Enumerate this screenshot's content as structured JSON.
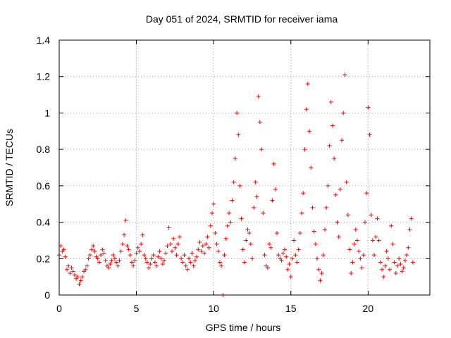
{
  "chart_data": {
    "type": "scatter",
    "title": "Day 051 of 2024, SRMTID for receiver iama",
    "xlabel": "GPS time / hours",
    "ylabel": "SRMTID / TECUs",
    "xlim": [
      0,
      24
    ],
    "ylim": [
      0,
      1.4
    ],
    "x_ticks": [
      0,
      5,
      10,
      15,
      20
    ],
    "x_tick_labels": [
      "0",
      "5",
      "10",
      "15",
      "20"
    ],
    "y_ticks": [
      0,
      0.2,
      0.4,
      0.6,
      0.8,
      1.0,
      1.2,
      1.4
    ],
    "y_tick_labels": [
      "0",
      "0.2",
      "0.4",
      "0.6",
      "0.8",
      "1",
      "1.2",
      "1.4"
    ],
    "grid": true,
    "marker": "+",
    "color": "#ff0000",
    "series": [
      {
        "name": "SRMTID",
        "points": [
          [
            0.0,
            0.22
          ],
          [
            0.1,
            0.27
          ],
          [
            0.2,
            0.24
          ],
          [
            0.3,
            0.25
          ],
          [
            0.4,
            0.21
          ],
          [
            0.5,
            0.14
          ],
          [
            0.6,
            0.16
          ],
          [
            0.7,
            0.12
          ],
          [
            0.8,
            0.15
          ],
          [
            0.9,
            0.13
          ],
          [
            1.0,
            0.11
          ],
          [
            1.1,
            0.09
          ],
          [
            1.2,
            0.1
          ],
          [
            1.3,
            0.06
          ],
          [
            1.4,
            0.08
          ],
          [
            1.5,
            0.1
          ],
          [
            1.6,
            0.13
          ],
          [
            1.7,
            0.14
          ],
          [
            1.8,
            0.16
          ],
          [
            1.9,
            0.2
          ],
          [
            2.0,
            0.22
          ],
          [
            2.1,
            0.25
          ],
          [
            2.2,
            0.27
          ],
          [
            2.3,
            0.24
          ],
          [
            2.4,
            0.21
          ],
          [
            2.5,
            0.2
          ],
          [
            2.6,
            0.18
          ],
          [
            2.7,
            0.22
          ],
          [
            2.8,
            0.25
          ],
          [
            2.9,
            0.23
          ],
          [
            3.0,
            0.19
          ],
          [
            3.1,
            0.16
          ],
          [
            3.2,
            0.15
          ],
          [
            3.3,
            0.17
          ],
          [
            3.4,
            0.19
          ],
          [
            3.5,
            0.22
          ],
          [
            3.6,
            0.2
          ],
          [
            3.7,
            0.18
          ],
          [
            3.8,
            0.16
          ],
          [
            3.9,
            0.19
          ],
          [
            4.0,
            0.24
          ],
          [
            4.1,
            0.28
          ],
          [
            4.2,
            0.33
          ],
          [
            4.3,
            0.41
          ],
          [
            4.4,
            0.27
          ],
          [
            4.5,
            0.25
          ],
          [
            4.6,
            0.22
          ],
          [
            4.7,
            0.18
          ],
          [
            4.8,
            0.16
          ],
          [
            4.9,
            0.19
          ],
          [
            5.0,
            0.23
          ],
          [
            5.1,
            0.26
          ],
          [
            5.2,
            0.24
          ],
          [
            5.3,
            0.28
          ],
          [
            5.4,
            0.33
          ],
          [
            5.5,
            0.22
          ],
          [
            5.6,
            0.2
          ],
          [
            5.7,
            0.18
          ],
          [
            5.8,
            0.15
          ],
          [
            5.9,
            0.17
          ],
          [
            6.0,
            0.2
          ],
          [
            6.1,
            0.22
          ],
          [
            6.2,
            0.18
          ],
          [
            6.3,
            0.16
          ],
          [
            6.4,
            0.21
          ],
          [
            6.5,
            0.24
          ],
          [
            6.6,
            0.2
          ],
          [
            6.7,
            0.17
          ],
          [
            6.8,
            0.19
          ],
          [
            6.9,
            0.23
          ],
          [
            7.0,
            0.27
          ],
          [
            7.1,
            0.37
          ],
          [
            7.2,
            0.28
          ],
          [
            7.3,
            0.24
          ],
          [
            7.4,
            0.31
          ],
          [
            7.5,
            0.26
          ],
          [
            7.6,
            0.22
          ],
          [
            7.7,
            0.28
          ],
          [
            7.8,
            0.32
          ],
          [
            7.9,
            0.2
          ],
          [
            8.0,
            0.18
          ],
          [
            8.1,
            0.22
          ],
          [
            8.2,
            0.16
          ],
          [
            8.3,
            0.14
          ],
          [
            8.4,
            0.2
          ],
          [
            8.5,
            0.18
          ],
          [
            8.6,
            0.23
          ],
          [
            8.7,
            0.16
          ],
          [
            8.8,
            0.19
          ],
          [
            8.9,
            0.21
          ],
          [
            9.0,
            0.25
          ],
          [
            9.1,
            0.29
          ],
          [
            9.2,
            0.24
          ],
          [
            9.3,
            0.27
          ],
          [
            9.4,
            0.23
          ],
          [
            9.5,
            0.28
          ],
          [
            9.6,
            0.32
          ],
          [
            9.7,
            0.26
          ],
          [
            9.8,
            0.38
          ],
          [
            9.9,
            0.45
          ],
          [
            10.0,
            0.5
          ],
          [
            10.1,
            0.34
          ],
          [
            10.2,
            0.28
          ],
          [
            10.3,
            0.24
          ],
          [
            10.4,
            0.18
          ],
          [
            10.5,
            0.16
          ],
          [
            10.6,
            0.0
          ],
          [
            10.7,
            0.22
          ],
          [
            10.8,
            0.31
          ],
          [
            10.9,
            0.38
          ],
          [
            11.0,
            0.45
          ],
          [
            11.1,
            0.4
          ],
          [
            11.2,
            0.52
          ],
          [
            11.3,
            0.62
          ],
          [
            11.4,
            0.75
          ],
          [
            11.5,
            1.0
          ],
          [
            11.6,
            0.88
          ],
          [
            11.7,
            0.6
          ],
          [
            11.8,
            0.42
          ],
          [
            11.9,
            0.25
          ],
          [
            12.0,
            0.18
          ],
          [
            12.1,
            0.3
          ],
          [
            12.2,
            0.36
          ],
          [
            12.3,
            0.34
          ],
          [
            12.4,
            0.28
          ],
          [
            12.5,
            0.2
          ],
          [
            12.6,
            0.48
          ],
          [
            12.7,
            0.62
          ],
          [
            12.8,
            0.54
          ],
          [
            12.9,
            1.09
          ],
          [
            13.0,
            0.95
          ],
          [
            13.1,
            0.8
          ],
          [
            13.2,
            0.45
          ],
          [
            13.3,
            0.22
          ],
          [
            13.4,
            0.16
          ],
          [
            13.5,
            0.15
          ],
          [
            13.6,
            0.28
          ],
          [
            13.7,
            0.26
          ],
          [
            13.8,
            0.52
          ],
          [
            13.9,
            0.72
          ],
          [
            14.0,
            0.58
          ],
          [
            14.1,
            0.34
          ],
          [
            14.2,
            0.22
          ],
          [
            14.3,
            0.2
          ],
          [
            14.4,
            0.19
          ],
          [
            14.5,
            0.23
          ],
          [
            14.6,
            0.25
          ],
          [
            14.7,
            0.21
          ],
          [
            14.8,
            0.14
          ],
          [
            14.9,
            0.17
          ],
          [
            15.0,
            0.1
          ],
          [
            15.1,
            0.2
          ],
          [
            15.2,
            0.3
          ],
          [
            15.3,
            0.22
          ],
          [
            15.4,
            0.18
          ],
          [
            15.5,
            0.25
          ],
          [
            15.6,
            0.34
          ],
          [
            15.7,
            0.45
          ],
          [
            15.8,
            0.56
          ],
          [
            15.9,
            0.8
          ],
          [
            16.0,
            1.02
          ],
          [
            16.1,
            1.16
          ],
          [
            16.2,
            0.9
          ],
          [
            16.3,
            0.7
          ],
          [
            16.4,
            0.48
          ],
          [
            16.5,
            0.35
          ],
          [
            16.6,
            0.28
          ],
          [
            16.7,
            0.2
          ],
          [
            16.8,
            0.14
          ],
          [
            16.9,
            0.08
          ],
          [
            17.0,
            0.12
          ],
          [
            17.1,
            0.22
          ],
          [
            17.2,
            0.36
          ],
          [
            17.3,
            0.48
          ],
          [
            17.4,
            0.6
          ],
          [
            17.5,
            0.82
          ],
          [
            17.6,
            1.06
          ],
          [
            17.7,
            0.93
          ],
          [
            17.8,
            0.75
          ],
          [
            17.9,
            0.55
          ],
          [
            18.0,
            0.4
          ],
          [
            18.1,
            0.32
          ],
          [
            18.2,
            0.58
          ],
          [
            18.3,
            0.85
          ],
          [
            18.4,
            1.0
          ],
          [
            18.5,
            1.21
          ],
          [
            18.6,
            0.62
          ],
          [
            18.7,
            0.44
          ],
          [
            18.8,
            0.25
          ],
          [
            18.9,
            0.12
          ],
          [
            19.0,
            0.18
          ],
          [
            19.1,
            0.28
          ],
          [
            19.2,
            0.36
          ],
          [
            19.3,
            0.3
          ],
          [
            19.4,
            0.24
          ],
          [
            19.5,
            0.2
          ],
          [
            19.6,
            0.15
          ],
          [
            19.7,
            0.22
          ],
          [
            19.8,
            0.4
          ],
          [
            19.9,
            0.56
          ],
          [
            20.0,
            1.03
          ],
          [
            20.1,
            0.88
          ],
          [
            20.2,
            0.44
          ],
          [
            20.3,
            0.3
          ],
          [
            20.4,
            0.22
          ],
          [
            20.5,
            0.32
          ],
          [
            20.6,
            0.42
          ],
          [
            20.7,
            0.3
          ],
          [
            20.8,
            0.18
          ],
          [
            20.9,
            0.14
          ],
          [
            21.0,
            0.1
          ],
          [
            21.1,
            0.16
          ],
          [
            21.2,
            0.24
          ],
          [
            21.3,
            0.2
          ],
          [
            21.4,
            0.14
          ],
          [
            21.5,
            0.38
          ],
          [
            21.6,
            0.28
          ],
          [
            21.7,
            0.18
          ],
          [
            21.8,
            0.12
          ],
          [
            21.9,
            0.16
          ],
          [
            22.0,
            0.2
          ],
          [
            22.1,
            0.17
          ],
          [
            22.2,
            0.13
          ],
          [
            22.3,
            0.15
          ],
          [
            22.4,
            0.19
          ],
          [
            22.5,
            0.22
          ],
          [
            22.6,
            0.26
          ],
          [
            22.7,
            0.36
          ],
          [
            22.8,
            0.42
          ],
          [
            22.9,
            0.18
          ]
        ]
      }
    ]
  }
}
